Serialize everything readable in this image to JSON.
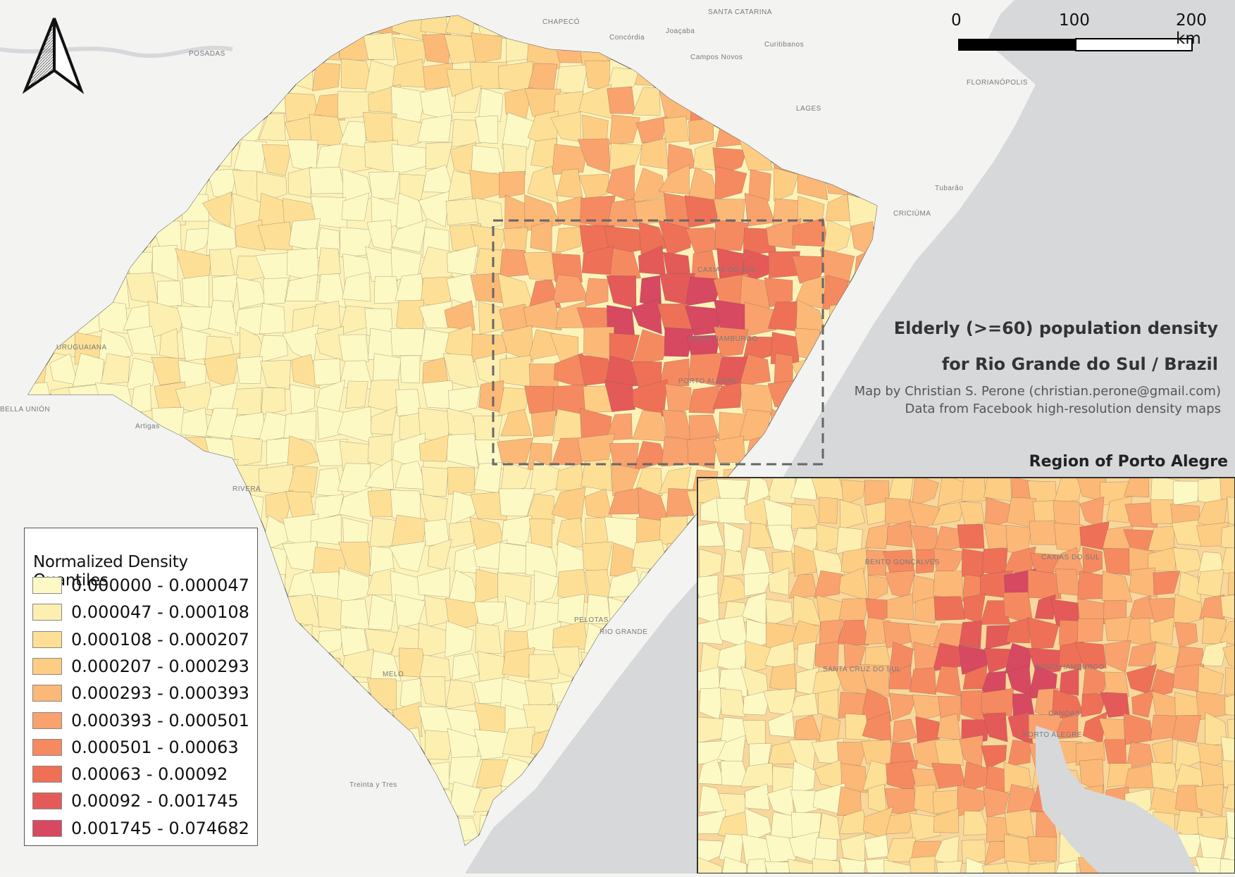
{
  "map": {
    "title_line1": "Elderly (>=60) population density",
    "title_line2": "for Rio Grande do Sul / Brazil",
    "credit_author": "Map by Christian S. Perone (christian.perone@gmail.com)",
    "credit_data": "Data from Facebook high-resolution density maps",
    "inset_title": "Region of Porto Alegre",
    "north_arrow_icon": "north-arrow-icon"
  },
  "scale_bar": {
    "labels": [
      "0",
      "100",
      "200 km"
    ]
  },
  "legend": {
    "title": "Normalized Density Quantiles",
    "items": [
      {
        "label": "0.000000 - 0.000047",
        "color": "#fdf9c4"
      },
      {
        "label": "0.000047 - 0.000108",
        "color": "#fdefb0"
      },
      {
        "label": "0.000108 - 0.000207",
        "color": "#fddf96"
      },
      {
        "label": "0.000207 - 0.000293",
        "color": "#fdcd84"
      },
      {
        "label": "0.000293 - 0.000393",
        "color": "#fbb877"
      },
      {
        "label": "0.000393 - 0.000501",
        "color": "#f9a26d"
      },
      {
        "label": "0.000501 - 0.00063",
        "color": "#f58a60"
      },
      {
        "label": "0.00063 - 0.00092",
        "color": "#ee7056"
      },
      {
        "label": "0.00092 - 0.001745",
        "color": "#e45a58"
      },
      {
        "label": "0.001745 - 0.074682",
        "color": "#d74861"
      }
    ]
  },
  "place_labels": {
    "posadas": "POSADAS",
    "chapeco": "CHAPECÓ",
    "concordia": "Concórdia",
    "joacaba": "Joaçaba",
    "santa_catarina": "SANTA CATARINA",
    "curitibanos": "Curitibanos",
    "campos_novos": "Campos Novos",
    "lages": "LAGES",
    "florianopolis": "FLORIANÓPOLIS",
    "tubarao": "Tubarão",
    "criciuma": "CRICIÚMA",
    "uruguaiana": "URUGUAIANA",
    "bella_union": "BELLA UNIÓN",
    "artigas": "Artigas",
    "rivera": "RIVERA",
    "melo": "MELO",
    "treinta_y_tres": "Treinta y Tres",
    "caxias_do_sul": "CAXIAS DO SUL",
    "novo_hamburgo": "NOVO HAMBURGO",
    "porto_alegre": "PORTO ALEGRE",
    "pelotas": "PELOTAS",
    "rio_grande": "RIO GRANDE",
    "bento_goncalves": "BENTO GONÇALVES",
    "canoas": "CANOAS",
    "santa_cruz_do_sul": "SANTA CRUZ DO SUL"
  }
}
